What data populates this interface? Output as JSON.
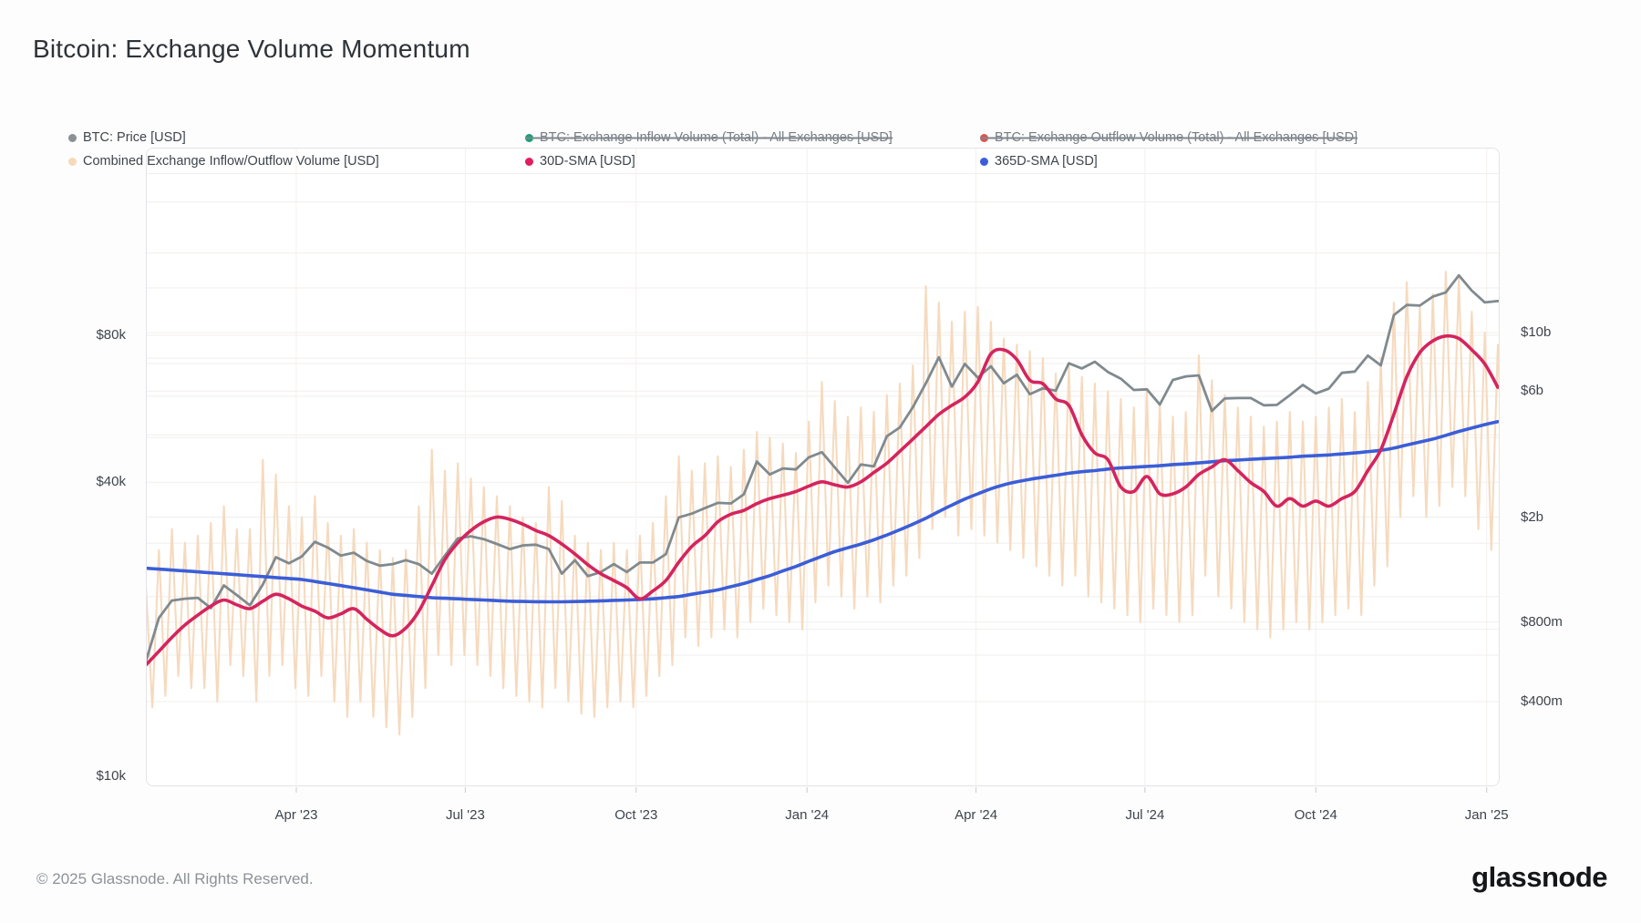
{
  "title": "Bitcoin: Exchange Volume Momentum",
  "footer": {
    "copyright": "© 2025 Glassnode. All Rights Reserved.",
    "brand": "glassnode"
  },
  "colors": {
    "price": "#7f8a8f",
    "sma30": "#d4245f",
    "sma365": "#3b5ed8",
    "volume": "#f6d8ba",
    "inflow_dot": "#16a176",
    "outflow_dot": "#e0544a",
    "grid_h": "#f1efee",
    "grid_v": "#f4f0ec",
    "tick": "#c7cacd"
  },
  "legend": {
    "items": [
      {
        "label": "BTC: Price [USD]",
        "color": "#8a9196",
        "disabled": false,
        "row": 1,
        "col": 1
      },
      {
        "label": "BTC: Exchange Inflow Volume (Total) - All Exchanges [USD]",
        "color": "#16a176",
        "disabled": true,
        "row": 1,
        "col": 2
      },
      {
        "label": "BTC: Exchange Outflow Volume (Total) - All Exchanges [USD]",
        "color": "#e0544a",
        "disabled": true,
        "row": 1,
        "col": 3
      },
      {
        "label": "Combined Exchange Inflow/Outflow Volume [USD]",
        "color": "#f5d9ba",
        "disabled": false,
        "row": 2,
        "col": 1
      },
      {
        "label": "30D-SMA [USD]",
        "color": "#e01e5f",
        "disabled": false,
        "row": 2,
        "col": 2
      },
      {
        "label": "365D-SMA [USD]",
        "color": "#3b5ed8",
        "disabled": false,
        "row": 2,
        "col": 3
      }
    ]
  },
  "axes": {
    "left_price_usd": [
      {
        "label": "$80k",
        "value_k": 80
      },
      {
        "label": "$40k",
        "value_k": 40
      },
      {
        "label": "$10k",
        "value_k": 10
      }
    ],
    "right_volume_usd": [
      {
        "label": "$10b",
        "value_b": 10
      },
      {
        "label": "$6b",
        "value_b": 6
      },
      {
        "label": "$2b",
        "value_b": 2
      },
      {
        "label": "$800m",
        "value_b": 0.8
      },
      {
        "label": "$400m",
        "value_b": 0.4
      }
    ],
    "x_dates": [
      {
        "label": "Apr '23",
        "date": "2023-04-01"
      },
      {
        "label": "Jul '23",
        "date": "2023-07-01"
      },
      {
        "label": "Oct '23",
        "date": "2023-10-01"
      },
      {
        "label": "Jan '24",
        "date": "2024-01-01"
      },
      {
        "label": "Apr '24",
        "date": "2024-04-01"
      },
      {
        "label": "Jul '24",
        "date": "2024-07-01"
      },
      {
        "label": "Oct '24",
        "date": "2024-10-01"
      },
      {
        "label": "Jan '25",
        "date": "2025-01-01"
      }
    ]
  },
  "chart_data": {
    "type": "line",
    "title": "Bitcoin: Exchange Volume Momentum",
    "x_start_date": "2023-01-10",
    "x_end_date": "2025-01-08",
    "interval_days": 7,
    "left_axis": {
      "unit": "USD (BTC price)",
      "scale": "log",
      "ticks_k": [
        10,
        40,
        80
      ]
    },
    "right_axis": {
      "unit": "USD (exchange volume)",
      "scale": "log",
      "ticks_b": [
        0.4,
        0.8,
        2,
        6,
        10
      ]
    },
    "grid": true,
    "legend_position": "top",
    "series": [
      {
        "name": "BTC: Price [USD]",
        "axis": "left",
        "unit": "USD thousands",
        "values": [
          17.2,
          21.1,
          22.9,
          23.1,
          23.2,
          22.1,
          24.6,
          23.5,
          22.4,
          24.7,
          28.1,
          27.3,
          28.2,
          30.2,
          29.4,
          28.3,
          28.7,
          27.6,
          27.0,
          27.2,
          27.7,
          27.2,
          26.0,
          28.3,
          30.7,
          31.0,
          30.6,
          29.9,
          29.2,
          29.7,
          29.8,
          29.2,
          26.0,
          27.7,
          25.7,
          26.2,
          27.2,
          26.2,
          27.4,
          27.4,
          28.5,
          33.9,
          34.5,
          35.4,
          36.3,
          36.2,
          37.8,
          44.1,
          41.5,
          42.7,
          42.5,
          45.0,
          46.1,
          42.9,
          39.9,
          43.5,
          43.1,
          49.7,
          51.8,
          57.0,
          63.8,
          72.1,
          62.8,
          69.9,
          65.5,
          69.1,
          63.8,
          66.4,
          60.6,
          62.3,
          61.6,
          70.1,
          68.4,
          70.6,
          67.3,
          65.2,
          61.8,
          62.0,
          57.7,
          64.8,
          65.9,
          66.2,
          56.0,
          59.4,
          59.5,
          59.5,
          57.5,
          57.6,
          60.3,
          63.3,
          60.8,
          62.2,
          67.0,
          67.4,
          72.7,
          69.4,
          88.0,
          92.3,
          92.0,
          96.0,
          97.9,
          106.1,
          98.7,
          93.4,
          94.0
        ]
      },
      {
        "name": "30D-SMA [USD]",
        "axis": "right",
        "unit": "USD billions",
        "values": [
          0.55,
          0.62,
          0.7,
          0.78,
          0.85,
          0.92,
          0.97,
          0.93,
          0.9,
          0.96,
          1.02,
          0.98,
          0.92,
          0.88,
          0.83,
          0.86,
          0.9,
          0.82,
          0.75,
          0.71,
          0.76,
          0.88,
          1.1,
          1.38,
          1.6,
          1.78,
          1.92,
          2.0,
          1.96,
          1.88,
          1.78,
          1.7,
          1.58,
          1.45,
          1.32,
          1.22,
          1.15,
          1.08,
          0.98,
          1.05,
          1.15,
          1.35,
          1.55,
          1.7,
          1.92,
          2.05,
          2.12,
          2.25,
          2.35,
          2.42,
          2.5,
          2.62,
          2.72,
          2.65,
          2.6,
          2.72,
          2.95,
          3.2,
          3.55,
          3.95,
          4.4,
          4.9,
          5.3,
          5.7,
          6.5,
          8.3,
          8.6,
          7.9,
          6.6,
          6.4,
          5.6,
          5.3,
          4.1,
          3.5,
          3.3,
          2.6,
          2.5,
          2.85,
          2.45,
          2.45,
          2.6,
          2.9,
          3.1,
          3.3,
          3.0,
          2.7,
          2.5,
          2.2,
          2.35,
          2.2,
          2.3,
          2.2,
          2.35,
          2.5,
          3.0,
          3.6,
          4.9,
          6.8,
          8.4,
          9.3,
          9.7,
          9.5,
          8.6,
          7.6,
          6.2
        ]
      },
      {
        "name": "365D-SMA [USD]",
        "axis": "right",
        "unit": "USD billions",
        "values": [
          1.28,
          1.27,
          1.26,
          1.25,
          1.24,
          1.23,
          1.22,
          1.21,
          1.2,
          1.19,
          1.18,
          1.17,
          1.16,
          1.14,
          1.12,
          1.1,
          1.08,
          1.06,
          1.04,
          1.02,
          1.01,
          1.0,
          0.99,
          0.985,
          0.98,
          0.975,
          0.97,
          0.965,
          0.96,
          0.958,
          0.956,
          0.955,
          0.955,
          0.957,
          0.96,
          0.963,
          0.967,
          0.97,
          0.975,
          0.98,
          0.99,
          1.0,
          1.02,
          1.04,
          1.06,
          1.09,
          1.12,
          1.16,
          1.2,
          1.25,
          1.3,
          1.36,
          1.42,
          1.48,
          1.53,
          1.58,
          1.64,
          1.71,
          1.79,
          1.88,
          1.98,
          2.1,
          2.22,
          2.34,
          2.45,
          2.56,
          2.65,
          2.72,
          2.78,
          2.83,
          2.88,
          2.93,
          2.97,
          3.0,
          3.04,
          3.07,
          3.09,
          3.11,
          3.13,
          3.16,
          3.18,
          3.21,
          3.24,
          3.27,
          3.29,
          3.31,
          3.33,
          3.35,
          3.37,
          3.4,
          3.42,
          3.44,
          3.47,
          3.5,
          3.54,
          3.58,
          3.65,
          3.75,
          3.85,
          3.95,
          4.08,
          4.22,
          4.35,
          4.48,
          4.6
        ]
      },
      {
        "name": "Combined Exchange Inflow/Outflow Volume [USD]",
        "axis": "right",
        "unit": "USD billions",
        "style": "weekly high/low envelope of daily values, drawn as zigzag",
        "weekly_high": [
          1.1,
          1.5,
          1.8,
          1.6,
          1.7,
          1.9,
          2.2,
          1.8,
          1.8,
          3.3,
          2.9,
          2.2,
          2.0,
          2.4,
          1.9,
          1.7,
          1.8,
          1.6,
          1.5,
          1.4,
          1.5,
          2.2,
          3.6,
          3.0,
          3.2,
          2.8,
          2.6,
          2.4,
          2.2,
          2.0,
          1.9,
          2.6,
          2.3,
          1.7,
          1.6,
          1.5,
          1.6,
          1.5,
          1.7,
          1.9,
          2.4,
          3.4,
          3.0,
          3.2,
          3.4,
          3.1,
          3.6,
          4.2,
          4.0,
          3.8,
          3.5,
          4.6,
          6.5,
          5.5,
          4.8,
          5.2,
          5.0,
          5.8,
          6.4,
          7.5,
          15.0,
          13.0,
          11.0,
          12.0,
          12.5,
          11.0,
          9.5,
          9.0,
          8.5,
          8.0,
          7.0,
          7.5,
          6.8,
          6.4,
          6.0,
          5.6,
          5.2,
          6.0,
          5.4,
          4.8,
          5.0,
          8.2,
          6.6,
          5.8,
          5.2,
          4.8,
          4.4,
          4.6,
          5.0,
          4.6,
          4.8,
          5.2,
          5.6,
          5.0,
          6.5,
          8.0,
          13.0,
          15.5,
          12.5,
          14.0,
          17.0,
          16.0,
          12.0,
          10.0,
          9.0
        ],
        "weekly_low": [
          0.38,
          0.42,
          0.5,
          0.45,
          0.45,
          0.4,
          0.55,
          0.5,
          0.4,
          0.5,
          0.55,
          0.45,
          0.42,
          0.5,
          0.4,
          0.35,
          0.4,
          0.35,
          0.32,
          0.3,
          0.35,
          0.45,
          0.6,
          0.55,
          0.6,
          0.55,
          0.5,
          0.45,
          0.42,
          0.4,
          0.38,
          0.45,
          0.4,
          0.36,
          0.35,
          0.38,
          0.4,
          0.38,
          0.42,
          0.5,
          0.55,
          0.7,
          0.65,
          0.7,
          0.75,
          0.7,
          0.8,
          0.9,
          0.85,
          0.8,
          0.75,
          0.95,
          1.1,
          1.0,
          0.9,
          1.0,
          0.95,
          1.1,
          1.2,
          1.4,
          1.8,
          2.0,
          1.7,
          1.8,
          1.7,
          1.6,
          1.5,
          1.4,
          1.3,
          1.2,
          1.1,
          1.2,
          1.0,
          0.95,
          0.9,
          0.85,
          0.8,
          0.9,
          0.85,
          0.8,
          0.85,
          1.2,
          1.0,
          0.9,
          0.8,
          0.75,
          0.7,
          0.75,
          0.8,
          0.75,
          0.8,
          0.85,
          0.9,
          0.85,
          1.1,
          1.3,
          2.0,
          2.4,
          2.0,
          2.2,
          2.6,
          2.4,
          1.8,
          1.5,
          2.0
        ]
      },
      {
        "name": "BTC: Exchange Inflow Volume (Total) - All Exchanges [USD]",
        "axis": "right",
        "hidden": true,
        "values": []
      },
      {
        "name": "BTC: Exchange Outflow Volume (Total) - All Exchanges [USD]",
        "axis": "right",
        "hidden": true,
        "values": []
      }
    ]
  }
}
